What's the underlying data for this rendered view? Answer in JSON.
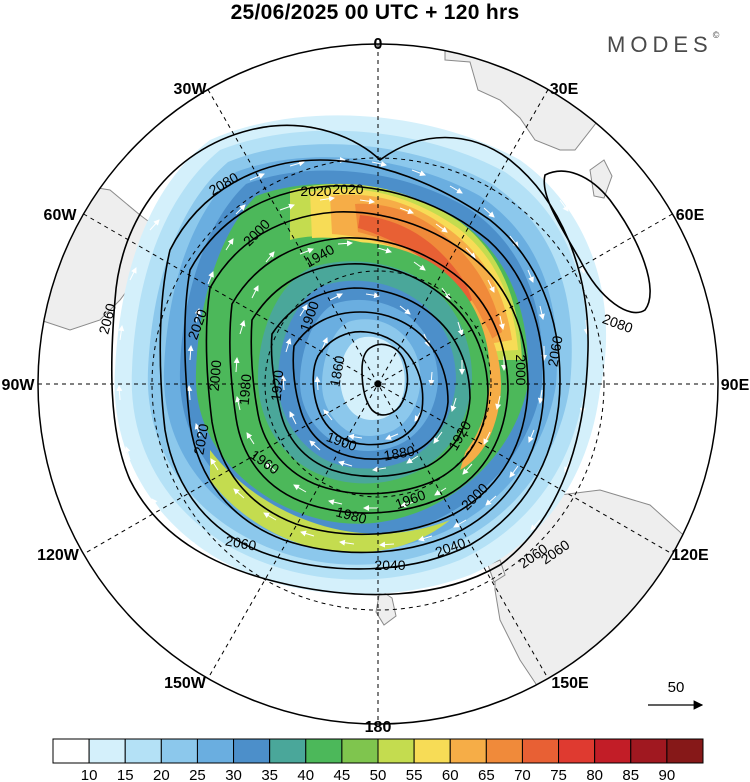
{
  "title": "25/06/2025  00 UTC  + 120 hrs",
  "brand": "MODES",
  "brand_mark": "©",
  "longitude_labels": {
    "top": "0",
    "top_right": "30E",
    "right_upper": "60E",
    "right": "90E",
    "right_lower": "120E",
    "bottom_right": "150E",
    "bottom": "180",
    "bottom_left": "150W",
    "left_lower": "120W",
    "left": "90W",
    "left_upper": "60W",
    "top_left": "30W"
  },
  "contour_labels": [
    "2020",
    "2020",
    "2000",
    "1940",
    "1900",
    "1860",
    "2060",
    "2020",
    "2000",
    "1980",
    "1920",
    "2060",
    "2080",
    "2000",
    "1920",
    "1880",
    "1900",
    "1960",
    "1980",
    "2000",
    "2040",
    "2040",
    "2060",
    "2060",
    "2060",
    "2020",
    "1960",
    "2080"
  ],
  "vector_reference": {
    "label": "50",
    "icon": "arrow-right-icon"
  },
  "colorbar": {
    "ticks": [
      "10",
      "15",
      "20",
      "25",
      "30",
      "35",
      "40",
      "45",
      "50",
      "55",
      "60",
      "65",
      "70",
      "75",
      "80",
      "85",
      "90"
    ],
    "colors": [
      "#ffffff",
      "#d4f0fb",
      "#b4e1f6",
      "#8cc8ec",
      "#6aaee0",
      "#4c8fca",
      "#4aa79a",
      "#4cb85a",
      "#7fc54e",
      "#c4dc4f",
      "#f7dc56",
      "#f6ad47",
      "#f08a3a",
      "#e86034",
      "#df3a30",
      "#c21d27",
      "#a01820",
      "#861818"
    ]
  },
  "map_colors": {
    "land": "#eeeeee",
    "coast": "#8a8a8a",
    "vectors": "#ffffff"
  }
}
